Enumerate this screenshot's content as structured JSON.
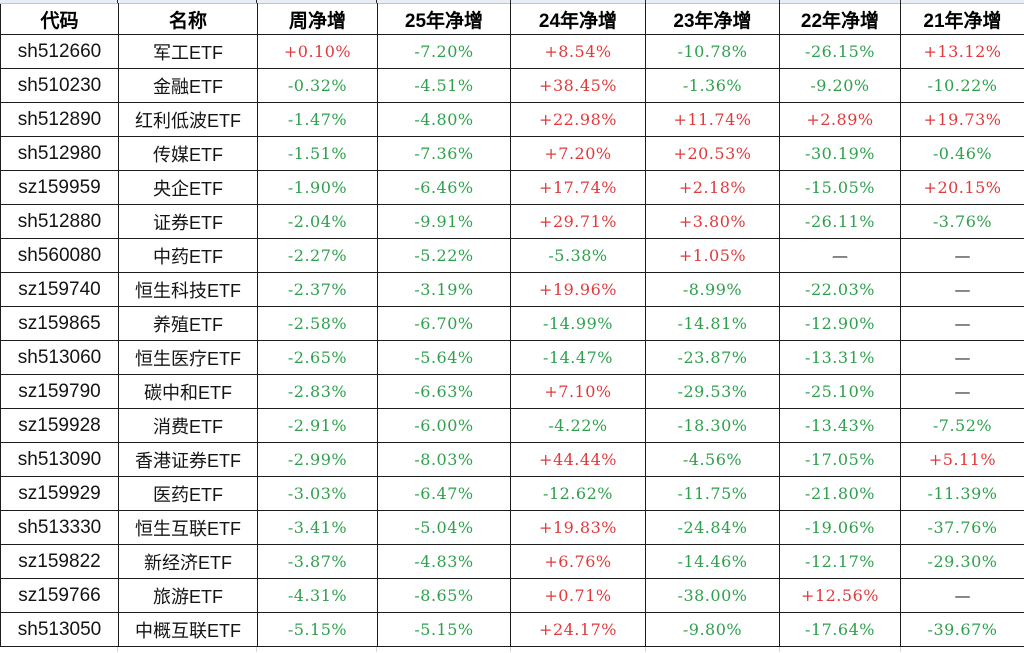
{
  "colors": {
    "up_red": "#e03a3c",
    "down_green": "#2fa04d",
    "text_black": "#141414",
    "grid_border": "#1c1c1c"
  },
  "chart_data": {
    "type": "table",
    "title": "",
    "columns": [
      "代码",
      "名称",
      "周净增",
      "25年净增",
      "24年净增",
      "23年净增",
      "22年净增",
      "21年净增"
    ],
    "rows": [
      {
        "code": "sh512660",
        "name": "军工ETF",
        "values": [
          "+0.10%",
          "-7.20%",
          "+8.54%",
          "-10.78%",
          "-26.15%",
          "+13.12%"
        ]
      },
      {
        "code": "sh510230",
        "name": "金融ETF",
        "values": [
          "-0.32%",
          "-4.51%",
          "+38.45%",
          "-1.36%",
          "-9.20%",
          "-10.22%"
        ]
      },
      {
        "code": "sh512890",
        "name": "红利低波ETF",
        "values": [
          "-1.47%",
          "-4.80%",
          "+22.98%",
          "+11.74%",
          "+2.89%",
          "+19.73%"
        ]
      },
      {
        "code": "sh512980",
        "name": "传媒ETF",
        "values": [
          "-1.51%",
          "-7.36%",
          "+7.20%",
          "+20.53%",
          "-30.19%",
          "-0.46%"
        ]
      },
      {
        "code": "sz159959",
        "name": "央企ETF",
        "values": [
          "-1.90%",
          "-6.46%",
          "+17.74%",
          "+2.18%",
          "-15.05%",
          "+20.15%"
        ]
      },
      {
        "code": "sh512880",
        "name": "证券ETF",
        "values": [
          "-2.04%",
          "-9.91%",
          "+29.71%",
          "+3.80%",
          "-26.11%",
          "-3.76%"
        ]
      },
      {
        "code": "sh560080",
        "name": "中药ETF",
        "values": [
          "-2.27%",
          "-5.22%",
          "-5.38%",
          "+1.05%",
          "—",
          "—"
        ]
      },
      {
        "code": "sz159740",
        "name": "恒生科技ETF",
        "values": [
          "-2.37%",
          "-3.19%",
          "+19.96%",
          "-8.99%",
          "-22.03%",
          "—"
        ]
      },
      {
        "code": "sz159865",
        "name": "养殖ETF",
        "values": [
          "-2.58%",
          "-6.70%",
          "-14.99%",
          "-14.81%",
          "-12.90%",
          "—"
        ]
      },
      {
        "code": "sh513060",
        "name": "恒生医疗ETF",
        "values": [
          "-2.65%",
          "-5.64%",
          "-14.47%",
          "-23.87%",
          "-13.31%",
          "—"
        ]
      },
      {
        "code": "sz159790",
        "name": "碳中和ETF",
        "values": [
          "-2.83%",
          "-6.63%",
          "+7.10%",
          "-29.53%",
          "-25.10%",
          "—"
        ]
      },
      {
        "code": "sz159928",
        "name": "消费ETF",
        "values": [
          "-2.91%",
          "-6.00%",
          "-4.22%",
          "-18.30%",
          "-13.43%",
          "-7.52%"
        ]
      },
      {
        "code": "sh513090",
        "name": "香港证券ETF",
        "values": [
          "-2.99%",
          "-8.03%",
          "+44.44%",
          "-4.56%",
          "-17.05%",
          "+5.11%"
        ]
      },
      {
        "code": "sz159929",
        "name": "医药ETF",
        "values": [
          "-3.03%",
          "-6.47%",
          "-12.62%",
          "-11.75%",
          "-21.80%",
          "-11.39%"
        ]
      },
      {
        "code": "sh513330",
        "name": "恒生互联ETF",
        "values": [
          "-3.41%",
          "-5.04%",
          "+19.83%",
          "-24.84%",
          "-19.06%",
          "-37.76%"
        ]
      },
      {
        "code": "sz159822",
        "name": "新经济ETF",
        "values": [
          "-3.87%",
          "-4.83%",
          "+6.76%",
          "-14.46%",
          "-12.17%",
          "-29.30%"
        ]
      },
      {
        "code": "sz159766",
        "name": "旅游ETF",
        "values": [
          "-4.31%",
          "-8.65%",
          "+0.71%",
          "-38.00%",
          "+12.56%",
          "—"
        ]
      },
      {
        "code": "sh513050",
        "name": "中概互联ETF",
        "values": [
          "-5.15%",
          "-5.15%",
          "+24.17%",
          "-9.80%",
          "-17.64%",
          "-39.67%"
        ]
      }
    ]
  }
}
